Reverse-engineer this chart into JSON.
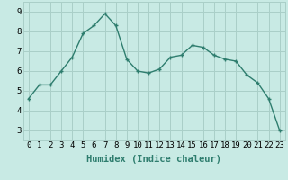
{
  "x": [
    0,
    1,
    2,
    3,
    4,
    5,
    6,
    7,
    8,
    9,
    10,
    11,
    12,
    13,
    14,
    15,
    16,
    17,
    18,
    19,
    20,
    21,
    22,
    23
  ],
  "y": [
    4.6,
    5.3,
    5.3,
    6.0,
    6.7,
    7.9,
    8.3,
    8.9,
    8.3,
    6.6,
    6.0,
    5.9,
    6.1,
    6.7,
    6.8,
    7.3,
    7.2,
    6.8,
    6.6,
    6.5,
    5.8,
    5.4,
    4.6,
    3.0
  ],
  "line_color": "#2e7d6e",
  "marker": "+",
  "bg_color": "#c8eae4",
  "grid_color": "#aacfc8",
  "xlabel": "Humidex (Indice chaleur)",
  "xlim": [
    -0.5,
    23.5
  ],
  "ylim": [
    2.5,
    9.5
  ],
  "yticks": [
    3,
    4,
    5,
    6,
    7,
    8,
    9
  ],
  "xticks": [
    0,
    1,
    2,
    3,
    4,
    5,
    6,
    7,
    8,
    9,
    10,
    11,
    12,
    13,
    14,
    15,
    16,
    17,
    18,
    19,
    20,
    21,
    22,
    23
  ],
  "tick_fontsize": 6.5,
  "label_fontsize": 7.5,
  "line_width": 1.0,
  "marker_size": 3.5,
  "marker_edge_width": 1.0
}
